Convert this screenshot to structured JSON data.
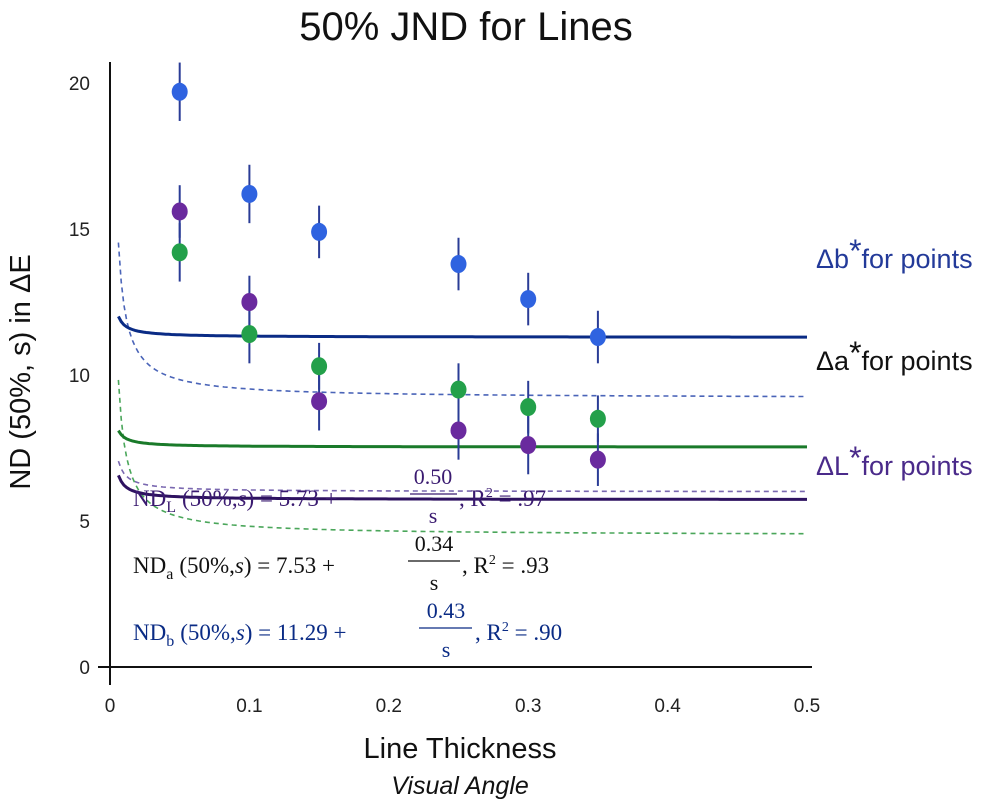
{
  "chart_data": {
    "type": "scatter",
    "title": "50% JND for Lines",
    "xlabel": "Line Thickness",
    "xlabel_sub": "Visual Angle",
    "ylabel": "ND (50%, s) in ΔE",
    "xlim": [
      0,
      0.5
    ],
    "ylim": [
      0,
      20.5
    ],
    "x_ticks": [
      "0",
      "0.1",
      "0.2",
      "0.3",
      "0.4",
      "0.5"
    ],
    "y_ticks": [
      "0",
      "5",
      "10",
      "15",
      "20"
    ],
    "grid": false,
    "colors": {
      "L": "#2e1260",
      "L_point": "#6a2a9e",
      "a": "#1a7a2a",
      "a_point": "#23a04a",
      "b": "#0a2b85",
      "b_point": "#2f63e0",
      "error": "#2a3c96",
      "ref_L": "#7a68b0",
      "ref_a": "#4aa65a",
      "ref_b": "#4a64b8",
      "label_a": "#111111"
    },
    "series": [
      {
        "key": "L",
        "x": [
          0.05,
          0.1,
          0.15,
          0.25,
          0.3,
          0.35
        ],
        "y": [
          15.6,
          12.5,
          9.1,
          8.1,
          7.6,
          7.1
        ],
        "err": [
          0.9,
          0.9,
          1.0,
          1.0,
          1.0,
          0.9
        ],
        "fit": {
          "a": 5.73,
          "b": 0.5
        }
      },
      {
        "key": "a",
        "x": [
          0.05,
          0.1,
          0.15,
          0.25,
          0.3,
          0.35
        ],
        "y": [
          14.2,
          11.4,
          10.3,
          9.5,
          8.9,
          8.5
        ],
        "err": [
          1.0,
          1.0,
          0.8,
          0.9,
          0.9,
          0.8
        ],
        "fit": {
          "a": 7.53,
          "b": 0.34
        }
      },
      {
        "key": "b",
        "x": [
          0.05,
          0.1,
          0.15,
          0.25,
          0.3,
          0.35
        ],
        "y": [
          19.7,
          16.2,
          14.9,
          13.8,
          12.6,
          11.3
        ],
        "err": [
          1.0,
          1.0,
          0.9,
          0.9,
          0.9,
          0.9
        ],
        "fit": {
          "a": 11.29,
          "b": 0.43
        }
      }
    ],
    "reference_curves": [
      {
        "key": "L",
        "label_sym": "ΔL",
        "label_rest": "for points",
        "fit": {
          "a": 6.0,
          "b": 0.63
        }
      },
      {
        "key": "a",
        "label_sym": "Δa",
        "label_rest": "for points",
        "fit": {
          "a": 4.5,
          "b": 3.2
        }
      },
      {
        "key": "b",
        "label_sym": "Δb",
        "label_rest": "for points",
        "fit": {
          "a": 9.2,
          "b": 3.2
        }
      }
    ],
    "equations": [
      {
        "key": "L",
        "nd": "ND",
        "sub": "L",
        "args": "(50%,",
        "s": "s",
        "rhs": ") = 5.73 + ",
        "num": "0.50",
        "den": "s",
        "r2_prefix": ", R",
        "r2_exp": "2",
        "r2_val": " = .97"
      },
      {
        "key": "a",
        "nd": "ND",
        "sub": "a",
        "args": "(50%,",
        "s": "s",
        "rhs": ") = 7.53 + ",
        "num": "0.34",
        "den": "s",
        "r2_prefix": ", R",
        "r2_exp": "2",
        "r2_val": " = .93"
      },
      {
        "key": "b",
        "nd": "ND",
        "sub": "b",
        "args": "(50%,",
        "s": "s",
        "rhs": ") = 11.29 + ",
        "num": "0.43",
        "den": "s",
        "r2_prefix": ", R",
        "r2_exp": "2",
        "r2_val": " = .90"
      }
    ]
  }
}
